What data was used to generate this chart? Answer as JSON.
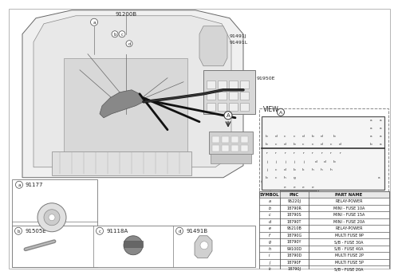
{
  "bg_color": "#ffffff",
  "table_headers": [
    "SYMBOL",
    "PNC",
    "PART NAME"
  ],
  "table_rows": [
    [
      "a",
      "95220J",
      "RELAY-POWER"
    ],
    [
      "b",
      "18790R",
      "MINI - FUSE 10A"
    ],
    [
      "c",
      "18790S",
      "MINI - FUSE 15A"
    ],
    [
      "d",
      "18790T",
      "MINI - FUSE 20A"
    ],
    [
      "e",
      "95210B",
      "RELAY-POWER"
    ],
    [
      "f",
      "18790G",
      "MULTI FUSE 9P"
    ],
    [
      "g",
      "18790Y",
      "S/B - FUSE 30A"
    ],
    [
      "h",
      "99100D",
      "S/B - FUSE 40A"
    ],
    [
      "i",
      "18790D",
      "MULTI FUSE 2P"
    ],
    [
      "j",
      "18790F",
      "MULTI FUSE 5P"
    ],
    [
      "k",
      "18790J",
      "S/B - FUSE 20A"
    ]
  ],
  "part_labels": {
    "main": "91200B",
    "top_right1": "91491J",
    "top_right2": "91491L",
    "right_box": "91950E"
  },
  "bottom_parts": [
    {
      "label": "a",
      "part_num": "91177"
    },
    {
      "label": "b",
      "part_num": "91505E"
    },
    {
      "label": "c",
      "part_num": "91118A"
    },
    {
      "label": "d",
      "part_num": "91491B"
    }
  ],
  "view_label": "VIEW",
  "label_a_circles": [
    "a",
    "b",
    "c",
    "d"
  ],
  "fuse_layout": {
    "row1_right": [
      "a",
      "a"
    ],
    "row2_right": [
      "a",
      "a"
    ],
    "row3_left": [
      "b",
      "d",
      "c",
      "c",
      "d",
      "b",
      "d"
    ],
    "row3_right": [
      "a",
      "a"
    ],
    "row4_left": [
      "b",
      "c",
      "d",
      "b",
      "c",
      "c",
      "d",
      "c",
      "d"
    ],
    "row4_right": [
      "b",
      "a"
    ],
    "row5": [
      "r",
      "r",
      "r",
      "r",
      "r",
      "r",
      "r",
      "r",
      "r"
    ],
    "row6_left": [
      "j",
      "j",
      "j",
      "j",
      "j"
    ],
    "row6_mid": [
      "d",
      "d",
      "b"
    ],
    "row7": [
      "j",
      "c",
      "d",
      "b",
      "k",
      "h",
      "h",
      "h"
    ],
    "row8": [
      "b",
      "c",
      "h",
      "g"
    ],
    "row8_right": [
      "a"
    ],
    "row9": [
      "e",
      "e",
      "e",
      "e"
    ]
  }
}
